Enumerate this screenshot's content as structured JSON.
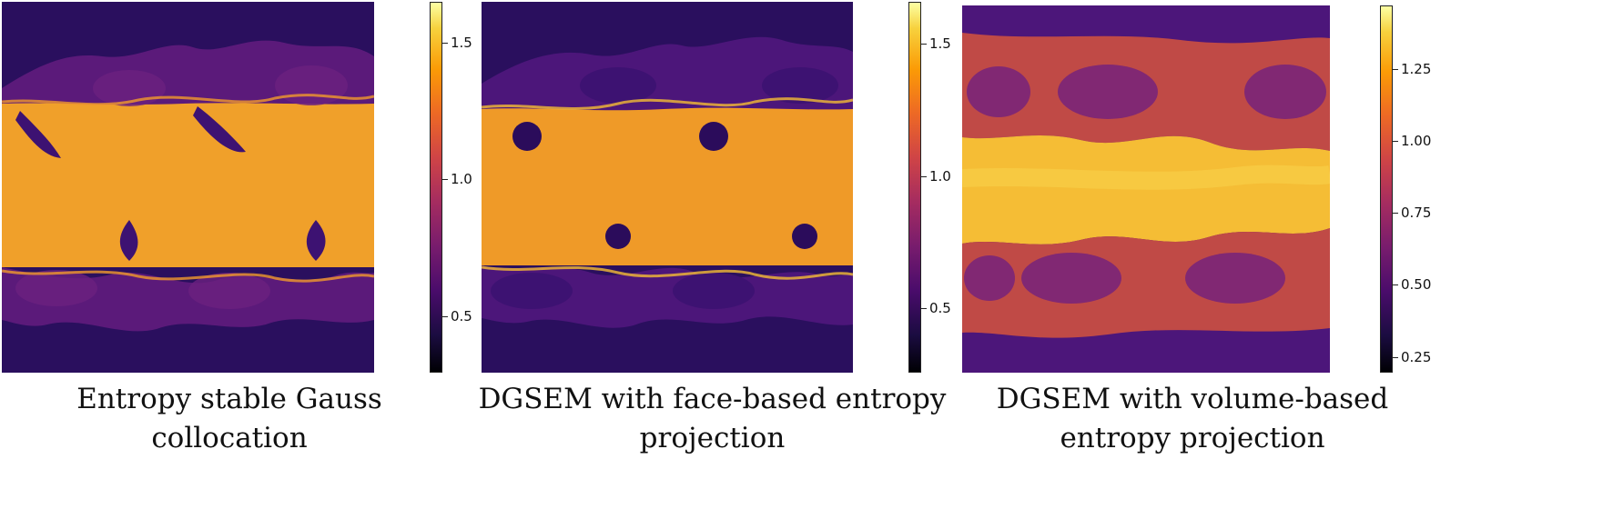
{
  "panels": [
    {
      "caption_line1": "Entropy stable Gauss collocation",
      "caption_line2": "",
      "colorbar": {
        "ticks": [
          "0.5",
          "1.0",
          "1.5"
        ],
        "range": [
          0.28,
          1.62
        ]
      }
    },
    {
      "caption_line1": "DGSEM with face-based entropy",
      "caption_line2": "projection",
      "colorbar": {
        "ticks": [
          "0.5",
          "1.0",
          "1.5"
        ],
        "range": [
          0.28,
          1.62
        ]
      }
    },
    {
      "caption_line1": "DGSEM with volume-based",
      "caption_line2": "entropy projection",
      "colorbar": {
        "ticks": [
          "0.25",
          "0.50",
          "0.75",
          "1.00",
          "1.25"
        ],
        "range": [
          0.2,
          1.45
        ]
      }
    }
  ],
  "colors": {
    "band_top": "#2a0f5e",
    "band_mid": "#f0a02a",
    "band_mid_light": "#f5bd35",
    "swirl_dark": "#3d1272",
    "swirl_mid": "#8a2f82",
    "swirl_bright": "#f19a2c"
  }
}
